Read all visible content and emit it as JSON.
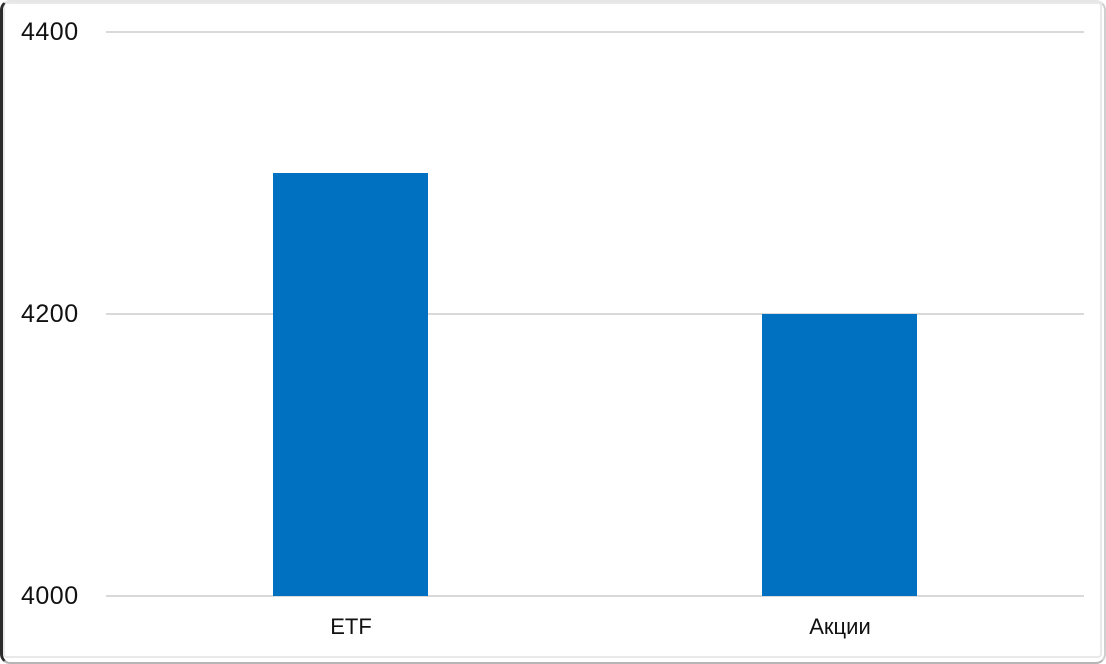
{
  "chart_data": {
    "type": "bar",
    "title": "",
    "categories": [
      "ETF",
      "Акции"
    ],
    "values": [
      4300,
      4200
    ],
    "xlabel": "",
    "ylabel": "",
    "ylim": [
      4000,
      4400
    ],
    "yticks": [
      4000,
      4200,
      4400
    ],
    "grid": true,
    "legend": false,
    "bar_color": "#0071c1",
    "gridline_color": "#d9d9d9",
    "text_color": "#111111"
  }
}
